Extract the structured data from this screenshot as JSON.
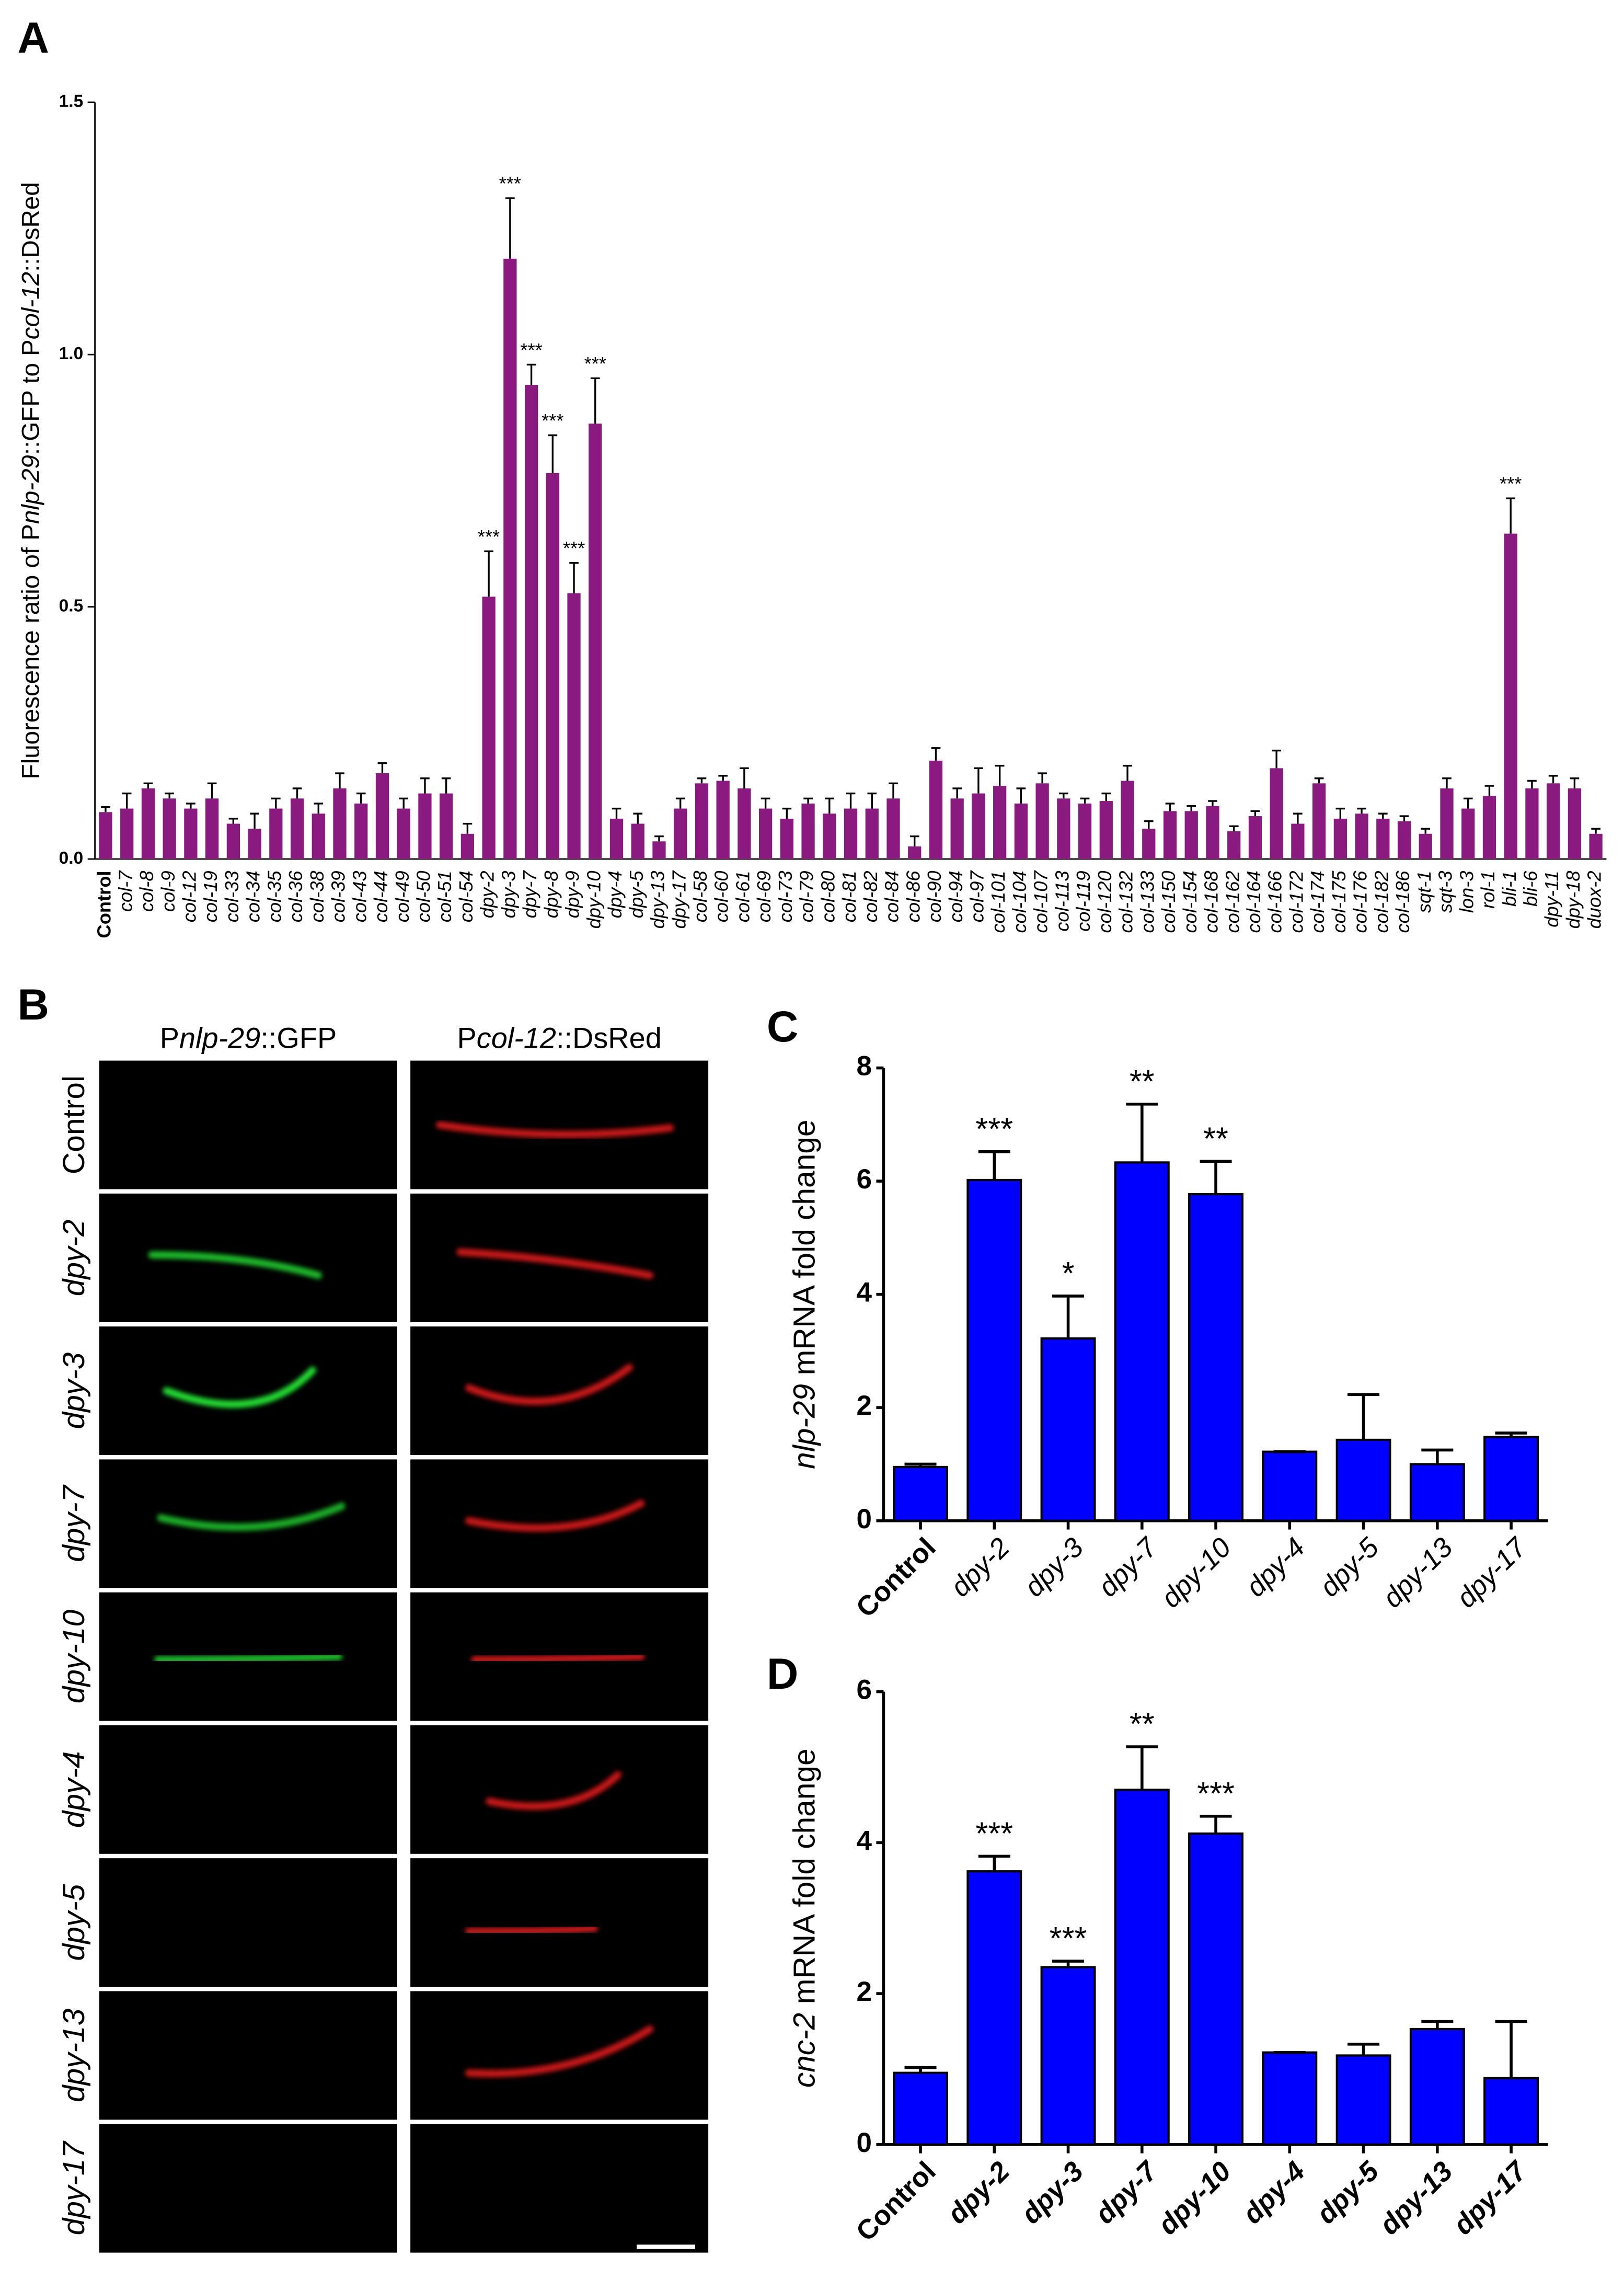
{
  "panel_labels": [
    "A",
    "B",
    "C",
    "D"
  ],
  "chart_data": [
    {
      "type": "bar",
      "ylabel": [
        "Fluorescence  ratio of  P",
        "nlp-29",
        "::GFP to P",
        "col-12",
        "::DsRed"
      ],
      "categories": [
        "Control",
        "col-7",
        "col-8",
        "col-9",
        "col-12",
        "col-19",
        "col-33",
        "col-34",
        "col-35",
        "col-36",
        "col-38",
        "col-39",
        "col-43",
        "col-44",
        "col-49",
        "col-50",
        "col-51",
        "col-54",
        "dpy-2",
        "dpy-3",
        "dpy-7",
        "dpy-8",
        "dpy-9",
        "dpy-10",
        "dpy-4",
        "dpy-5",
        "dpy-13",
        "dpy-17",
        "col-58",
        "col-60",
        "col-61",
        "col-69",
        "col-73",
        "col-79",
        "col-80",
        "col-81",
        "col-82",
        "col-84",
        "col-86",
        "col-90",
        "col-94",
        "col-97",
        "col-101",
        "col-104",
        "col-107",
        "col-113",
        "col-119",
        "col-120",
        "col-132",
        "col-133",
        "col-150",
        "col-154",
        "col-168",
        "col-162",
        "col-164",
        "col-166",
        "col-172",
        "col-174",
        "col-175",
        "col-176",
        "col-182",
        "col-186",
        "sqt-1",
        "sqt-3",
        "lon-3",
        "rol-1",
        "bli-1",
        "bli-6",
        "dpy-11",
        "dpy-18",
        "duox-2"
      ],
      "values": [
        0.093,
        0.1,
        0.14,
        0.12,
        0.1,
        0.12,
        0.07,
        0.06,
        0.1,
        0.12,
        0.09,
        0.14,
        0.11,
        0.17,
        0.1,
        0.13,
        0.13,
        0.05,
        0.52,
        1.19,
        0.94,
        0.765,
        0.527,
        0.863,
        0.08,
        0.07,
        0.035,
        0.1,
        0.15,
        0.155,
        0.14,
        0.1,
        0.08,
        0.11,
        0.09,
        0.1,
        0.1,
        0.12,
        0.025,
        0.195,
        0.12,
        0.13,
        0.145,
        0.11,
        0.15,
        0.12,
        0.11,
        0.115,
        0.155,
        0.06,
        0.095,
        0.095,
        0.105,
        0.055,
        0.085,
        0.18,
        0.07,
        0.15,
        0.08,
        0.09,
        0.08,
        0.075,
        0.05,
        0.14,
        0.1,
        0.125,
        0.645,
        0.14,
        0.15,
        0.14,
        0.05
      ],
      "errors": [
        0.01,
        0.03,
        0.01,
        0.01,
        0.01,
        0.03,
        0.01,
        0.03,
        0.02,
        0.02,
        0.02,
        0.03,
        0.02,
        0.02,
        0.02,
        0.03,
        0.03,
        0.02,
        0.09,
        0.12,
        0.04,
        0.075,
        0.06,
        0.09,
        0.02,
        0.02,
        0.01,
        0.02,
        0.01,
        0.01,
        0.04,
        0.02,
        0.02,
        0.01,
        0.03,
        0.03,
        0.03,
        0.03,
        0.02,
        0.025,
        0.02,
        0.05,
        0.04,
        0.03,
        0.02,
        0.01,
        0.01,
        0.015,
        0.03,
        0.015,
        0.015,
        0.01,
        0.01,
        0.01,
        0.01,
        0.035,
        0.02,
        0.01,
        0.02,
        0.01,
        0.01,
        0.01,
        0.01,
        0.02,
        0.02,
        0.02,
        0.07,
        0.015,
        0.015,
        0.02,
        0.01
      ],
      "significance": [
        null,
        null,
        null,
        null,
        null,
        null,
        null,
        null,
        null,
        null,
        null,
        null,
        null,
        null,
        null,
        null,
        null,
        null,
        "***",
        "***",
        "***",
        "***",
        "***",
        "***",
        null,
        null,
        null,
        null,
        null,
        null,
        null,
        null,
        null,
        null,
        null,
        null,
        null,
        null,
        null,
        null,
        null,
        null,
        null,
        null,
        null,
        null,
        null,
        null,
        null,
        null,
        null,
        null,
        null,
        null,
        null,
        null,
        null,
        null,
        null,
        null,
        null,
        null,
        null,
        null,
        null,
        null,
        "***",
        null,
        null,
        null,
        null
      ],
      "color": "#8b1a80",
      "ylim": [
        0,
        1.5
      ],
      "yticks": [
        {
          "value": 0,
          "label": "0.0"
        },
        0.5,
        {
          "value": 1,
          "label": "1.0"
        },
        1.5
      ]
    },
    {
      "type": "bar",
      "ylabel": [
        "nlp-29",
        " mRNA fold change"
      ],
      "categories": [
        "Control",
        "dpy-2",
        "dpy-3",
        "dpy-7",
        "dpy-10",
        "dpy-4",
        "dpy-5",
        "dpy-13",
        "dpy-17"
      ],
      "values": [
        0.95,
        6.02,
        3.22,
        6.33,
        5.77,
        1.22,
        1.43,
        1.0,
        1.48
      ],
      "errors": [
        0.05,
        0.5,
        0.75,
        1.03,
        0.58,
        0,
        0.8,
        0.25,
        0.07
      ],
      "significance": [
        null,
        "***",
        "*",
        "**",
        "**",
        null,
        null,
        null,
        null
      ],
      "color": "#0000ff",
      "ylim": [
        0,
        8
      ],
      "yticks": [
        0,
        2,
        4,
        6,
        8
      ]
    },
    {
      "type": "bar",
      "ylabel": [
        "cnc-2",
        "  mRNA fold change"
      ],
      "categories": [
        "Control",
        "dpy-2",
        "dpy-3",
        "dpy-7",
        "dpy-10",
        "dpy-4",
        "dpy-5",
        "dpy-13",
        "dpy-17"
      ],
      "values": [
        0.95,
        3.62,
        2.35,
        4.7,
        4.12,
        1.22,
        1.18,
        1.53,
        0.88
      ],
      "errors": [
        0.07,
        0.2,
        0.08,
        0.57,
        0.23,
        0,
        0.15,
        0.1,
        0.75
      ],
      "significance": [
        null,
        "***",
        "***",
        "**",
        "***",
        null,
        null,
        null,
        null
      ],
      "color": "#0000ff",
      "ylim": [
        0,
        6
      ],
      "yticks": [
        0,
        2,
        4,
        6
      ]
    }
  ],
  "panel_b": {
    "columns": [
      [
        "P",
        "nlp-29",
        "::GFP"
      ],
      [
        "P",
        "col-12",
        "::DsRed"
      ]
    ],
    "rows": [
      "Control",
      "dpy-2",
      "dpy-3",
      "dpy-7",
      "dpy-10",
      "dpy-4",
      "dpy-5",
      "dpy-13",
      "dpy-17"
    ]
  }
}
